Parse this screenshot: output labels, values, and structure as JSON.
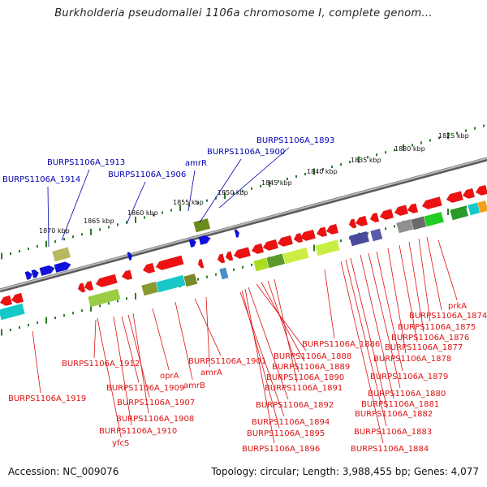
{
  "title": "Burkholderia pseudomallei 1106a chromosome I, complete genom...",
  "footer": {
    "accession": "Accession: NC_009076",
    "topology": "Topology: circular; Length: 3,988,455 bp; Genes: 4,077"
  },
  "colors": {
    "forward_gene": "#1010dd",
    "reverse_gene": "#ee1111",
    "label_forward": "#0000b0",
    "label_reverse": "#dd1111",
    "tick": "#2a7a2a",
    "backbone": "#888888"
  },
  "scale_labels": [
    "1870 kbp",
    "1865 kbp",
    "1860 kbp",
    "1855 kbp",
    "1850 kbp",
    "1845 kbp",
    "1840 kbp",
    "1835 kbp",
    "1830 kbp",
    "1825 kbp"
  ],
  "forward_genes": [
    "BURPS1106A_1914",
    "BURPS1106A_1913",
    "BURPS1106A_1906",
    "amrR",
    "BURPS1106A_1900",
    "BURPS1106A_1893"
  ],
  "reverse_genes": [
    "BURPS1106A_1919",
    "BURPS1106A_1912",
    "BURPS1106A_1909",
    "BURPS1106A_1907",
    "BURPS1106A_1908",
    "BURPS1106A_1910",
    "yfcS",
    "oprA",
    "amrB",
    "amrA",
    "BURPS1106A_1901",
    "BURPS1106A_1886",
    "BURPS1106A_1888",
    "BURPS1106A_1889",
    "BURPS1106A_1890",
    "BURPS1106A_1891",
    "BURPS1106A_1892",
    "BURPS1106A_1894",
    "BURPS1106A_1895",
    "BURPS1106A_1896",
    "prkA",
    "BURPS1106A_1874",
    "BURPS1106A_1875",
    "BURPS1106A_1876",
    "BURPS1106A_1877",
    "BURPS1106A_1878",
    "BURPS1106A_1879",
    "BURPS1106A_1880",
    "BURPS1106A_1881",
    "BURPS1106A_1882",
    "BURPS1106A_1883",
    "BURPS1106A_1884"
  ]
}
